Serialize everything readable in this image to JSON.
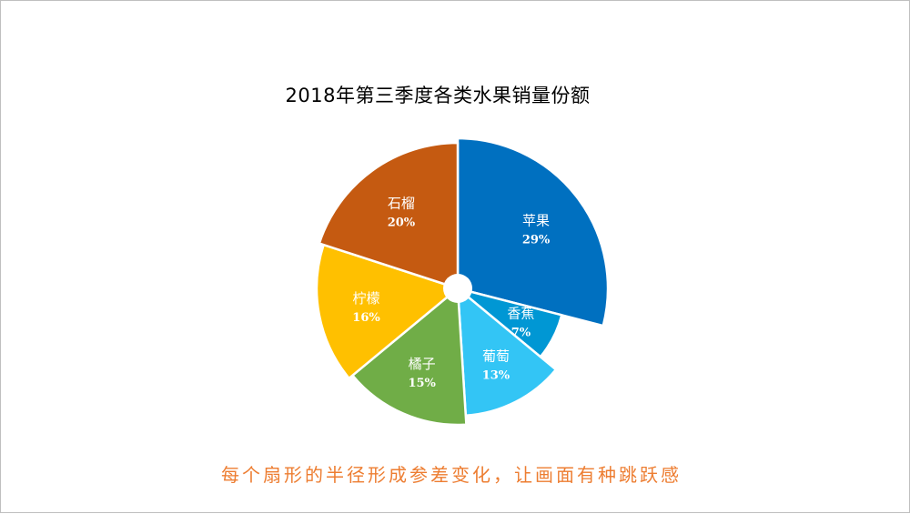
{
  "chart_data": {
    "type": "pie",
    "title": "2018年第三季度各类水果销量份额",
    "start_angle_deg": 0,
    "slices": [
      {
        "label": "苹果",
        "value": 29,
        "display": "29%",
        "color": "#0070c0",
        "radius": 1.0
      },
      {
        "label": "香蕉",
        "value": 7,
        "display": "7%",
        "color": "#0097d4",
        "radius": 0.78
      },
      {
        "label": "葡萄",
        "value": 13,
        "display": "13%",
        "color": "#33c5f5",
        "radius": 1.0
      },
      {
        "label": "橘子",
        "value": 15,
        "display": "15%",
        "color": "#70ad47",
        "radius": 1.0
      },
      {
        "label": "柠檬",
        "value": 16,
        "display": "16%",
        "color": "#ffc000",
        "radius": 1.0
      },
      {
        "label": "石榴",
        "value": 20,
        "display": "20%",
        "color": "#c55a11",
        "radius": 1.0
      }
    ]
  },
  "caption": "每个扇形的半径形成参差变化，让画面有种跳跃感"
}
